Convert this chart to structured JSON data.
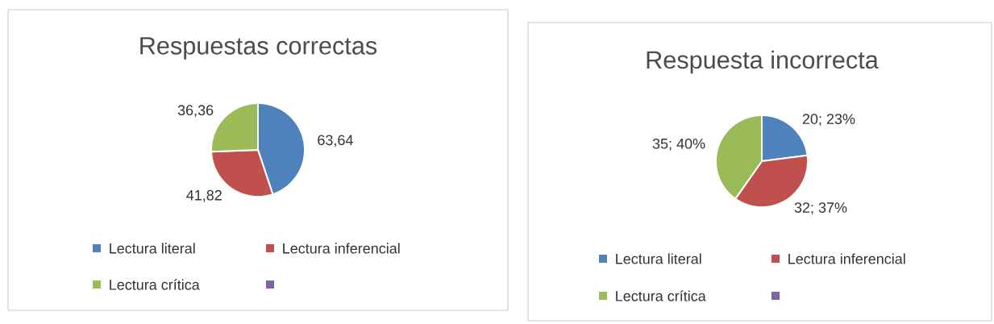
{
  "chart_data": [
    {
      "type": "pie",
      "title": "Respuestas correctas",
      "categories": [
        "Lectura literal",
        "Lectura inferencial",
        "Lectura crítica",
        null
      ],
      "values": [
        63.64,
        41.82,
        36.36,
        0
      ],
      "colors": [
        "#4f81bd",
        "#c0504d",
        "#9bbb59",
        "#8064a2"
      ],
      "value_labels": [
        "63,64",
        "41,82",
        "36,36",
        null
      ],
      "legend": "bottom"
    },
    {
      "type": "pie",
      "title": "Respuesta incorrecta",
      "categories": [
        "Lectura literal",
        "Lectura inferencial",
        "Lectura crítica",
        null
      ],
      "values": [
        20,
        32,
        35,
        0
      ],
      "colors": [
        "#4f81bd",
        "#c0504d",
        "#9bbb59",
        "#8064a2"
      ],
      "value_labels": [
        "20; 23%",
        "32; 37%",
        "35; 40%",
        null
      ],
      "legend": "bottom"
    }
  ]
}
